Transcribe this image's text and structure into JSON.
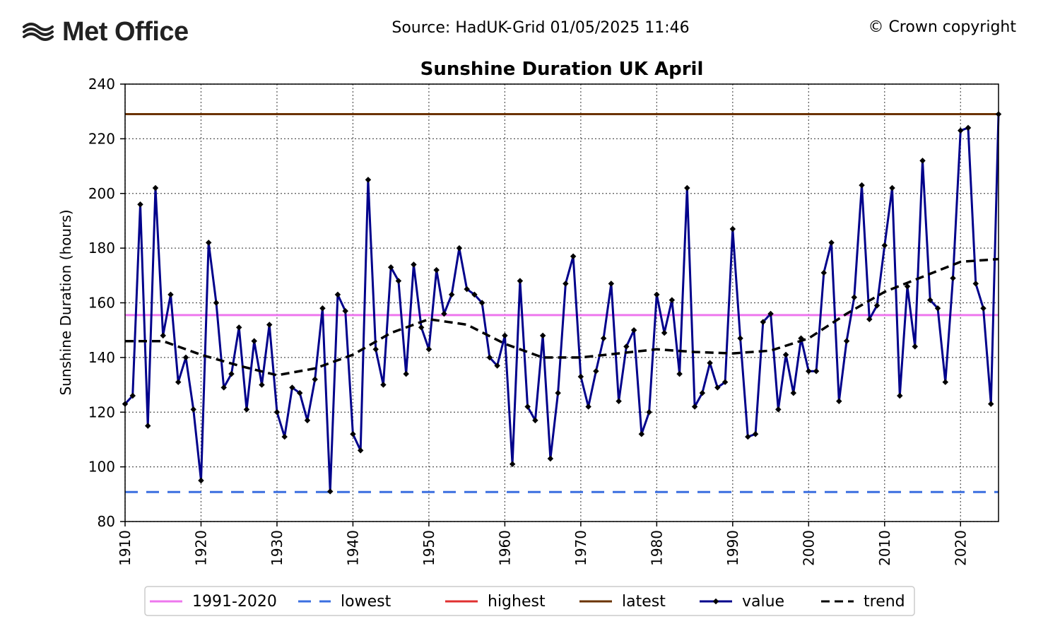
{
  "header": {
    "logo_text": "Met Office",
    "source": "Source: HadUK-Grid 01/05/2025 11:46",
    "copyright": "© Crown copyright"
  },
  "chart_data": {
    "type": "line",
    "title": "Sunshine Duration UK April",
    "xlabel": "",
    "ylabel": "Sunshine Duration (hours)",
    "xlim": [
      1910,
      2025
    ],
    "ylim": [
      80,
      240
    ],
    "xticks": [
      1910,
      1920,
      1930,
      1940,
      1950,
      1960,
      1970,
      1980,
      1990,
      2000,
      2010,
      2020
    ],
    "yticks": [
      80,
      100,
      120,
      140,
      160,
      180,
      200,
      220,
      240
    ],
    "grid": true,
    "legend_position": "bottom",
    "colors": {
      "baseline": "#ee77ee",
      "lowest": "#3b6fe0",
      "highest": "#e03030",
      "latest": "#6b3300",
      "value": "#00008b",
      "trend": "#000000"
    },
    "reference_lines": {
      "baseline_1991_2020": 155.5,
      "lowest": 90.8,
      "highest": 229.0,
      "latest": 229.0
    },
    "series": [
      {
        "name": "value",
        "x": [
          1910,
          1911,
          1912,
          1913,
          1914,
          1915,
          1916,
          1917,
          1918,
          1919,
          1920,
          1921,
          1922,
          1923,
          1924,
          1925,
          1926,
          1927,
          1928,
          1929,
          1930,
          1931,
          1932,
          1933,
          1934,
          1935,
          1936,
          1937,
          1938,
          1939,
          1940,
          1941,
          1942,
          1943,
          1944,
          1945,
          1946,
          1947,
          1948,
          1949,
          1950,
          1951,
          1952,
          1953,
          1954,
          1955,
          1956,
          1957,
          1958,
          1959,
          1960,
          1961,
          1962,
          1963,
          1964,
          1965,
          1966,
          1967,
          1968,
          1969,
          1970,
          1971,
          1972,
          1973,
          1974,
          1975,
          1976,
          1977,
          1978,
          1979,
          1980,
          1981,
          1982,
          1983,
          1984,
          1985,
          1986,
          1987,
          1988,
          1989,
          1990,
          1991,
          1992,
          1993,
          1994,
          1995,
          1996,
          1997,
          1998,
          1999,
          2000,
          2001,
          2002,
          2003,
          2004,
          2005,
          2006,
          2007,
          2008,
          2009,
          2010,
          2011,
          2012,
          2013,
          2014,
          2015,
          2016,
          2017,
          2018,
          2019,
          2020,
          2021,
          2022,
          2023,
          2024,
          2025
        ],
        "y": [
          123,
          126,
          196,
          115,
          202,
          148,
          163,
          131,
          140,
          121,
          95,
          182,
          160,
          129,
          134,
          151,
          121,
          146,
          130,
          152,
          120,
          111,
          129,
          127,
          117,
          132,
          158,
          91,
          163,
          157,
          112,
          106,
          205,
          143,
          130,
          173,
          168,
          134,
          174,
          151,
          143,
          172,
          156,
          163,
          180,
          165,
          163,
          160,
          140,
          137,
          148,
          101,
          168,
          122,
          117,
          148,
          103,
          127,
          167,
          177,
          133,
          122,
          135,
          147,
          167,
          124,
          144,
          150,
          112,
          120,
          163,
          149,
          161,
          134,
          202,
          122,
          127,
          138,
          129,
          131,
          187,
          147,
          111,
          112,
          153,
          156,
          121,
          141,
          127,
          147,
          135,
          135,
          171,
          182,
          124,
          146,
          162,
          203,
          154,
          159,
          181,
          202,
          126,
          166,
          144,
          212,
          161,
          158,
          131,
          169,
          223,
          224,
          167,
          158,
          123,
          229
        ]
      },
      {
        "name": "trend",
        "x": [
          1910,
          1915,
          1920,
          1925,
          1930,
          1935,
          1940,
          1945,
          1950,
          1955,
          1960,
          1965,
          1970,
          1975,
          1980,
          1985,
          1990,
          1995,
          2000,
          2005,
          2010,
          2015,
          2020,
          2025
        ],
        "y": [
          146,
          146,
          141,
          137,
          133.5,
          136,
          141,
          149,
          154,
          152,
          145,
          140,
          140,
          141.5,
          143,
          142,
          141.5,
          142.5,
          147,
          156,
          164,
          169.5,
          175,
          176
        ]
      }
    ],
    "legend": [
      "1991-2020",
      "lowest",
      "highest",
      "latest",
      "value",
      "trend"
    ]
  }
}
